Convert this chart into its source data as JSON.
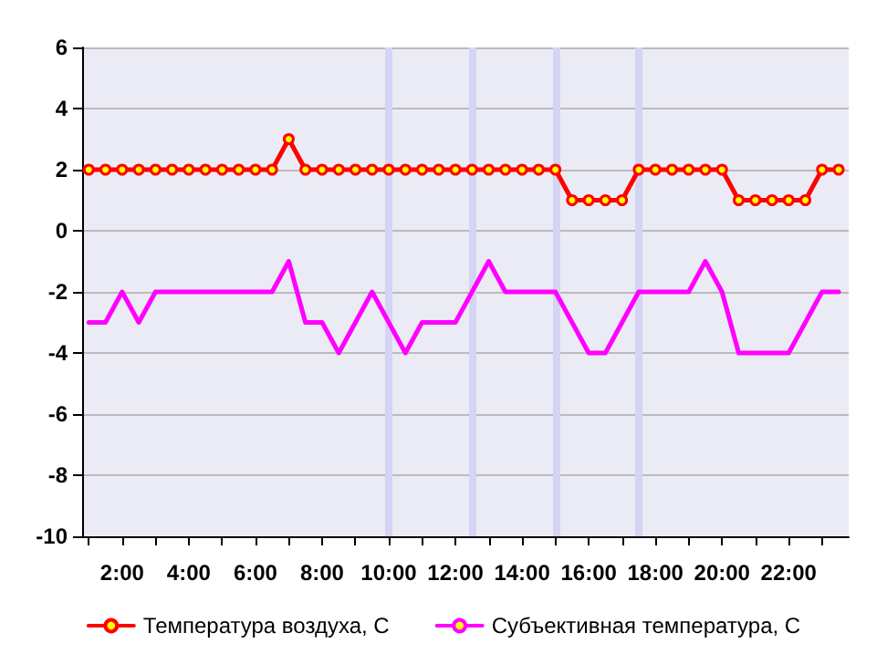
{
  "chart_data": {
    "type": "line",
    "x": [
      1,
      1.5,
      2,
      2.5,
      3,
      3.5,
      4,
      4.5,
      5,
      5.5,
      6,
      6.5,
      7,
      7.5,
      8,
      8.5,
      9,
      9.5,
      10,
      10.5,
      11,
      11.5,
      12,
      12.5,
      13,
      13.5,
      14,
      14.5,
      15,
      15.5,
      16,
      16.5,
      17,
      17.5,
      18,
      18.5,
      19,
      19.5,
      20,
      20.5,
      21,
      21.5,
      22,
      22.5,
      23,
      23.5
    ],
    "series": [
      {
        "name": "Температура воздуха, С",
        "color": "#ff0000",
        "marker": "circle",
        "values": [
          2,
          2,
          2,
          2,
          2,
          2,
          2,
          2,
          2,
          2,
          2,
          2,
          3,
          2,
          2,
          2,
          2,
          2,
          2,
          2,
          2,
          2,
          2,
          2,
          2,
          2,
          2,
          2,
          2,
          1,
          1,
          1,
          1,
          2,
          2,
          2,
          2,
          2,
          2,
          1,
          1,
          1,
          1,
          1,
          2,
          2
        ]
      },
      {
        "name": "Субъективная температура, С",
        "color": "#ff00ff",
        "marker": "none",
        "values": [
          -3,
          -3,
          -2,
          -3,
          -2,
          -2,
          -2,
          -2,
          -2,
          -2,
          -2,
          -2,
          -1,
          -3,
          -3,
          -4,
          -3,
          -2,
          -3,
          -4,
          -3,
          -3,
          -3,
          -2,
          -1,
          -2,
          -2,
          -2,
          -2,
          -3,
          -4,
          -4,
          -3,
          -2,
          -2,
          -2,
          -2,
          -1,
          -2,
          -4,
          -4,
          -4,
          -4,
          -3,
          -2,
          -2
        ]
      }
    ],
    "xlim": [
      0.8,
      23.8
    ],
    "xticks": [
      {
        "value": 1,
        "label": null
      },
      {
        "value": 2,
        "label": "2:00"
      },
      {
        "value": 3,
        "label": null
      },
      {
        "value": 4,
        "label": "4:00"
      },
      {
        "value": 5,
        "label": null
      },
      {
        "value": 6,
        "label": "6:00"
      },
      {
        "value": 7,
        "label": null
      },
      {
        "value": 8,
        "label": "8:00"
      },
      {
        "value": 9,
        "label": null
      },
      {
        "value": 10,
        "label": "10:00"
      },
      {
        "value": 11,
        "label": null
      },
      {
        "value": 12,
        "label": "12:00"
      },
      {
        "value": 13,
        "label": null
      },
      {
        "value": 14,
        "label": "14:00"
      },
      {
        "value": 15,
        "label": null
      },
      {
        "value": 16,
        "label": "16:00"
      },
      {
        "value": 17,
        "label": null
      },
      {
        "value": 18,
        "label": "18:00"
      },
      {
        "value": 19,
        "label": null
      },
      {
        "value": 20,
        "label": "20:00"
      },
      {
        "value": 21,
        "label": null
      },
      {
        "value": 22,
        "label": "22:00"
      },
      {
        "value": 23,
        "label": null
      }
    ],
    "ylim": [
      -10,
      6
    ],
    "yticks": [
      -10,
      -8,
      -6,
      -4,
      -2,
      0,
      2,
      4,
      6
    ],
    "ref_lines": [
      {
        "axis": "x",
        "value": 10,
        "color": "#d4d4f4"
      },
      {
        "axis": "x",
        "value": 12.5,
        "color": "#d4d4f4"
      },
      {
        "axis": "x",
        "value": 15,
        "color": "#d4d4f4"
      },
      {
        "axis": "x",
        "value": 17.5,
        "color": "#d4d4f4"
      }
    ],
    "grid": "y",
    "legend": "bottom",
    "line_style": "solid"
  }
}
